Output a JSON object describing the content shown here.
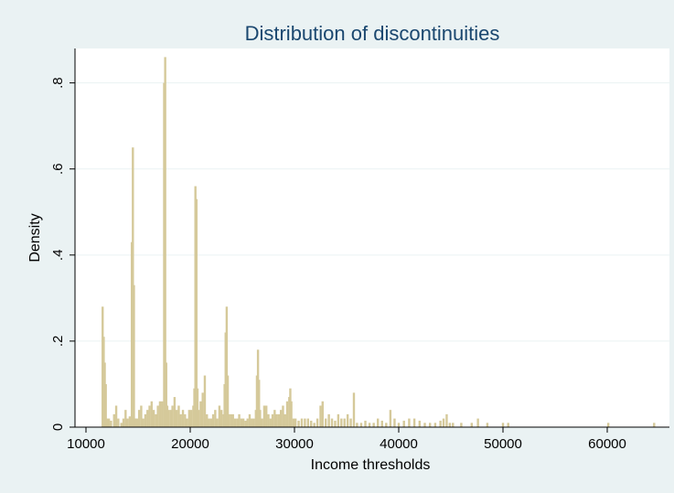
{
  "chart_data": {
    "type": "bar",
    "title": "Distribution of discontinuities",
    "xlabel": "Income thresholds",
    "ylabel": "Density",
    "xlim": [
      10000,
      65000
    ],
    "ylim": [
      0,
      0.88
    ],
    "xticks": [
      10000,
      20000,
      30000,
      40000,
      50000,
      60000
    ],
    "xtick_labels": [
      "10000",
      "20000",
      "30000",
      "40000",
      "50000",
      "60000"
    ],
    "yticks": [
      0,
      0.2,
      0.4,
      0.6,
      0.8
    ],
    "ytick_labels": [
      "0",
      ".2",
      ".4",
      ".6",
      ".8"
    ],
    "grid": true,
    "legend": "none",
    "bar_color": "#d5c99a",
    "x": [
      11600,
      11700,
      11800,
      11900,
      12000,
      12200,
      12400,
      12700,
      12900,
      13100,
      13400,
      13600,
      13800,
      14000,
      14200,
      14400,
      14500,
      14600,
      14700,
      14800,
      14900,
      15100,
      15300,
      15500,
      15700,
      15900,
      16100,
      16300,
      16500,
      16700,
      16900,
      17100,
      17300,
      17500,
      17600,
      17700,
      17800,
      17900,
      18100,
      18300,
      18500,
      18700,
      18900,
      19100,
      19300,
      19500,
      19700,
      19900,
      20100,
      20300,
      20400,
      20500,
      20600,
      20700,
      20800,
      21000,
      21200,
      21400,
      21600,
      21800,
      22000,
      22200,
      22400,
      22600,
      22800,
      23000,
      23200,
      23300,
      23400,
      23500,
      23600,
      23700,
      23900,
      24100,
      24300,
      24500,
      24700,
      24900,
      25100,
      25300,
      25500,
      25700,
      25900,
      26100,
      26300,
      26400,
      26500,
      26600,
      26700,
      26900,
      27100,
      27300,
      27500,
      27700,
      27900,
      28100,
      28300,
      28500,
      28700,
      28900,
      29100,
      29300,
      29500,
      29600,
      29700,
      29900,
      30100,
      30400,
      30700,
      31000,
      31300,
      31600,
      31900,
      32200,
      32500,
      32700,
      33000,
      33300,
      33600,
      33900,
      34200,
      34500,
      34800,
      35100,
      35400,
      35700,
      36000,
      36400,
      36800,
      37200,
      37600,
      38000,
      38400,
      38800,
      39200,
      39600,
      40000,
      40500,
      41000,
      41500,
      42000,
      42500,
      43000,
      43500,
      44000,
      44300,
      44600,
      44900,
      45200,
      46000,
      47000,
      47600,
      48500,
      50000,
      50500,
      60100,
      64500
    ],
    "values": [
      0.28,
      0.21,
      0.15,
      0.1,
      0.02,
      0.02,
      0.015,
      0.03,
      0.05,
      0.02,
      0.01,
      0.02,
      0.04,
      0.02,
      0.025,
      0.43,
      0.65,
      0.33,
      0.02,
      0.02,
      0.02,
      0.04,
      0.05,
      0.02,
      0.03,
      0.04,
      0.05,
      0.06,
      0.04,
      0.03,
      0.05,
      0.06,
      0.06,
      0.8,
      0.86,
      0.15,
      0.05,
      0.04,
      0.04,
      0.05,
      0.07,
      0.04,
      0.05,
      0.03,
      0.04,
      0.03,
      0.02,
      0.04,
      0.04,
      0.05,
      0.09,
      0.56,
      0.53,
      0.09,
      0.04,
      0.06,
      0.08,
      0.12,
      0.03,
      0.02,
      0.02,
      0.03,
      0.04,
      0.02,
      0.05,
      0.04,
      0.03,
      0.1,
      0.22,
      0.28,
      0.12,
      0.03,
      0.03,
      0.03,
      0.02,
      0.02,
      0.03,
      0.02,
      0.02,
      0.015,
      0.02,
      0.03,
      0.02,
      0.02,
      0.04,
      0.12,
      0.18,
      0.11,
      0.04,
      0.02,
      0.05,
      0.05,
      0.03,
      0.02,
      0.03,
      0.04,
      0.03,
      0.03,
      0.04,
      0.05,
      0.03,
      0.06,
      0.07,
      0.09,
      0.06,
      0.02,
      0.02,
      0.015,
      0.02,
      0.02,
      0.02,
      0.015,
      0.01,
      0.02,
      0.05,
      0.06,
      0.02,
      0.03,
      0.02,
      0.015,
      0.03,
      0.02,
      0.02,
      0.03,
      0.02,
      0.08,
      0.01,
      0.01,
      0.015,
      0.01,
      0.01,
      0.02,
      0.015,
      0.01,
      0.04,
      0.02,
      0.01,
      0.015,
      0.02,
      0.02,
      0.015,
      0.01,
      0.01,
      0.01,
      0.015,
      0.02,
      0.03,
      0.01,
      0.01,
      0.01,
      0.01,
      0.02,
      0.01,
      0.01,
      0.01,
      0.01,
      0.01
    ]
  }
}
